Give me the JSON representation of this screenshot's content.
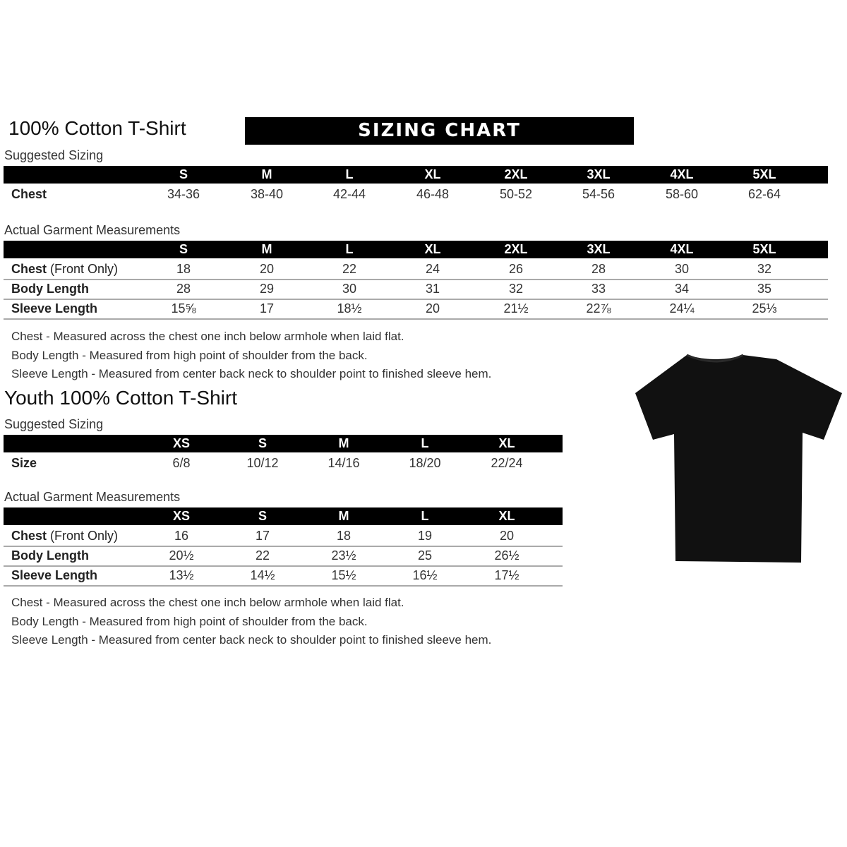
{
  "adult": {
    "title": "100% Cotton T-Shirt",
    "banner": "SIZING CHART",
    "suggested_label": "Suggested Sizing",
    "sizes": [
      "S",
      "M",
      "L",
      "XL",
      "2XL",
      "3XL",
      "4XL",
      "5XL"
    ],
    "suggested_rows": [
      {
        "label": "Chest",
        "values": [
          "34-36",
          "38-40",
          "42-44",
          "46-48",
          "50-52",
          "54-56",
          "58-60",
          "62-64"
        ]
      }
    ],
    "actual_label": "Actual Garment Measurements",
    "actual_rows": [
      {
        "label": "Chest",
        "label_suffix": " (Front Only)",
        "values": [
          "18",
          "20",
          "22",
          "24",
          "26",
          "28",
          "30",
          "32"
        ]
      },
      {
        "label": "Body Length",
        "label_suffix": "",
        "values": [
          "28",
          "29",
          "30",
          "31",
          "32",
          "33",
          "34",
          "35"
        ]
      },
      {
        "label": "Sleeve Length",
        "label_suffix": "",
        "values": [
          "15⅝",
          "17",
          "18½",
          "20",
          "21½",
          "22⅞",
          "24¼",
          "25⅓"
        ]
      }
    ],
    "notes": [
      "Chest - Measured across the chest one inch below armhole when laid flat.",
      "Body Length - Measured from high point of shoulder from the back.",
      "Sleeve Length - Measured from center back neck to shoulder point to finished sleeve hem."
    ]
  },
  "youth": {
    "title": "Youth 100% Cotton T-Shirt",
    "suggested_label": "Suggested Sizing",
    "sizes": [
      "XS",
      "S",
      "M",
      "L",
      "XL"
    ],
    "suggested_rows": [
      {
        "label": "Size",
        "values": [
          "6/8",
          "10/12",
          "14/16",
          "18/20",
          "22/24"
        ]
      }
    ],
    "actual_label": "Actual Garment Measurements",
    "actual_rows": [
      {
        "label": "Chest",
        "label_suffix": " (Front Only)",
        "values": [
          "16",
          "17",
          "18",
          "19",
          "20"
        ]
      },
      {
        "label": "Body Length",
        "label_suffix": "",
        "values": [
          "20½",
          "22",
          "23½",
          "25",
          "26½"
        ]
      },
      {
        "label": "Sleeve Length",
        "label_suffix": "",
        "values": [
          "13½",
          "14½",
          "15½",
          "16½",
          "17½"
        ]
      }
    ],
    "notes": [
      "Chest - Measured across the chest one inch below armhole when laid flat.",
      "Body Length - Measured from high point of shoulder from the back.",
      "Sleeve Length - Measured from center back neck to shoulder point to finished sleeve hem."
    ]
  },
  "image": {
    "tshirt_color": "#111111"
  }
}
